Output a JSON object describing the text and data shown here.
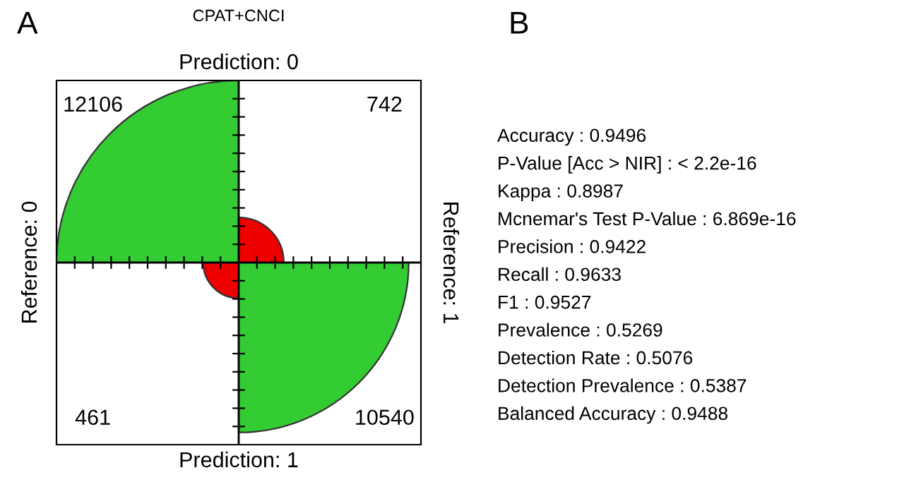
{
  "chart_data": [
    {
      "type": "other",
      "title": "CPAT+CNCI",
      "annotations": [
        "A",
        "Prediction: 0",
        "Prediction: 1",
        "Reference: 0",
        "Reference: 1"
      ],
      "values": [
        12106,
        742,
        461,
        10540
      ],
      "colors": [
        "#33cc33",
        "#ee0000",
        "#ee0000",
        "#33cc33"
      ],
      "data_labels": true
    },
    {
      "type": "other",
      "annotations": [
        "B",
        "Accuracy : 0.9496",
        "P-Value [Acc > NIR] : < 2.2e-16",
        "Kappa : 0.8987",
        "Mcnemar's Test P-Value : 6.869e-16",
        "Precision : 0.9422",
        "Recall : 0.9633",
        "F1 : 0.9527",
        "Prevalence : 0.5269",
        "Detection Rate : 0.5076",
        "Detection Prevalence : 0.5387",
        "Balanced Accuracy : 0.9488"
      ]
    }
  ]
}
